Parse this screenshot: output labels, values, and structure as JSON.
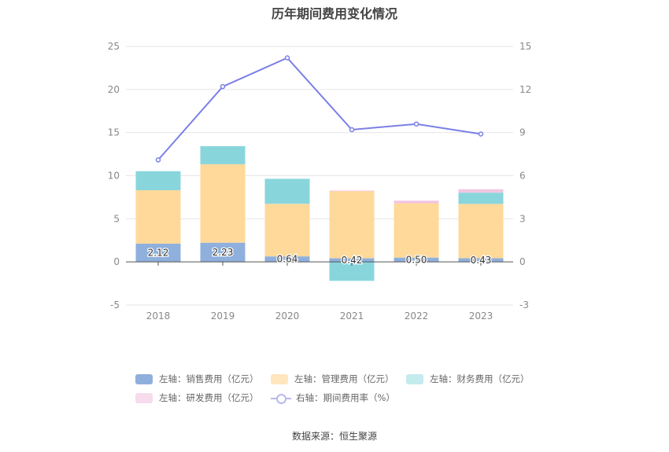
{
  "chart_data": {
    "type": "bar",
    "title": "历年期间费用变化情况",
    "categories": [
      "2018",
      "2019",
      "2020",
      "2021",
      "2022",
      "2023"
    ],
    "stacked": true,
    "left_axis": {
      "ylim": [
        -5,
        25
      ],
      "ticks": [
        "-5",
        "0",
        "5",
        "10",
        "15",
        "20",
        "25"
      ]
    },
    "right_axis": {
      "ylim": [
        -3,
        15
      ],
      "ticks": [
        "-3",
        "0",
        "3",
        "6",
        "9",
        "12",
        "15"
      ]
    },
    "series": [
      {
        "name": "左轴：销售费用（亿元）",
        "axis": "left",
        "type": "bar",
        "color": "#8fb0dc",
        "values": [
          2.12,
          2.23,
          0.64,
          0.42,
          0.5,
          0.43
        ],
        "labels": [
          "2.12",
          "2.23",
          "0.64",
          "0.42",
          "0.50",
          "0.43"
        ]
      },
      {
        "name": "左轴：管理费用（亿元）",
        "axis": "left",
        "type": "bar",
        "color": "#ffd99a",
        "values": [
          6.2,
          9.1,
          6.1,
          7.8,
          6.3,
          6.3
        ]
      },
      {
        "name": "左轴：财务费用（亿元）",
        "axis": "left",
        "type": "bar",
        "color": "#88d6dc",
        "values": [
          2.2,
          2.1,
          2.9,
          -2.2,
          0.0,
          1.3
        ]
      },
      {
        "name": "左轴：研发费用（亿元）",
        "axis": "left",
        "type": "bar",
        "color": "#f2c4e0",
        "values": [
          0.0,
          0.0,
          0.0,
          0.05,
          0.3,
          0.4
        ]
      },
      {
        "name": "右轴：期间费用率（%）",
        "axis": "right",
        "type": "line",
        "color": "#7b7fe6",
        "values": [
          7.1,
          12.2,
          14.2,
          9.2,
          9.6,
          8.9
        ]
      }
    ],
    "grid": true,
    "legend_position": "bottom"
  },
  "source": "数据来源：恒生聚源"
}
